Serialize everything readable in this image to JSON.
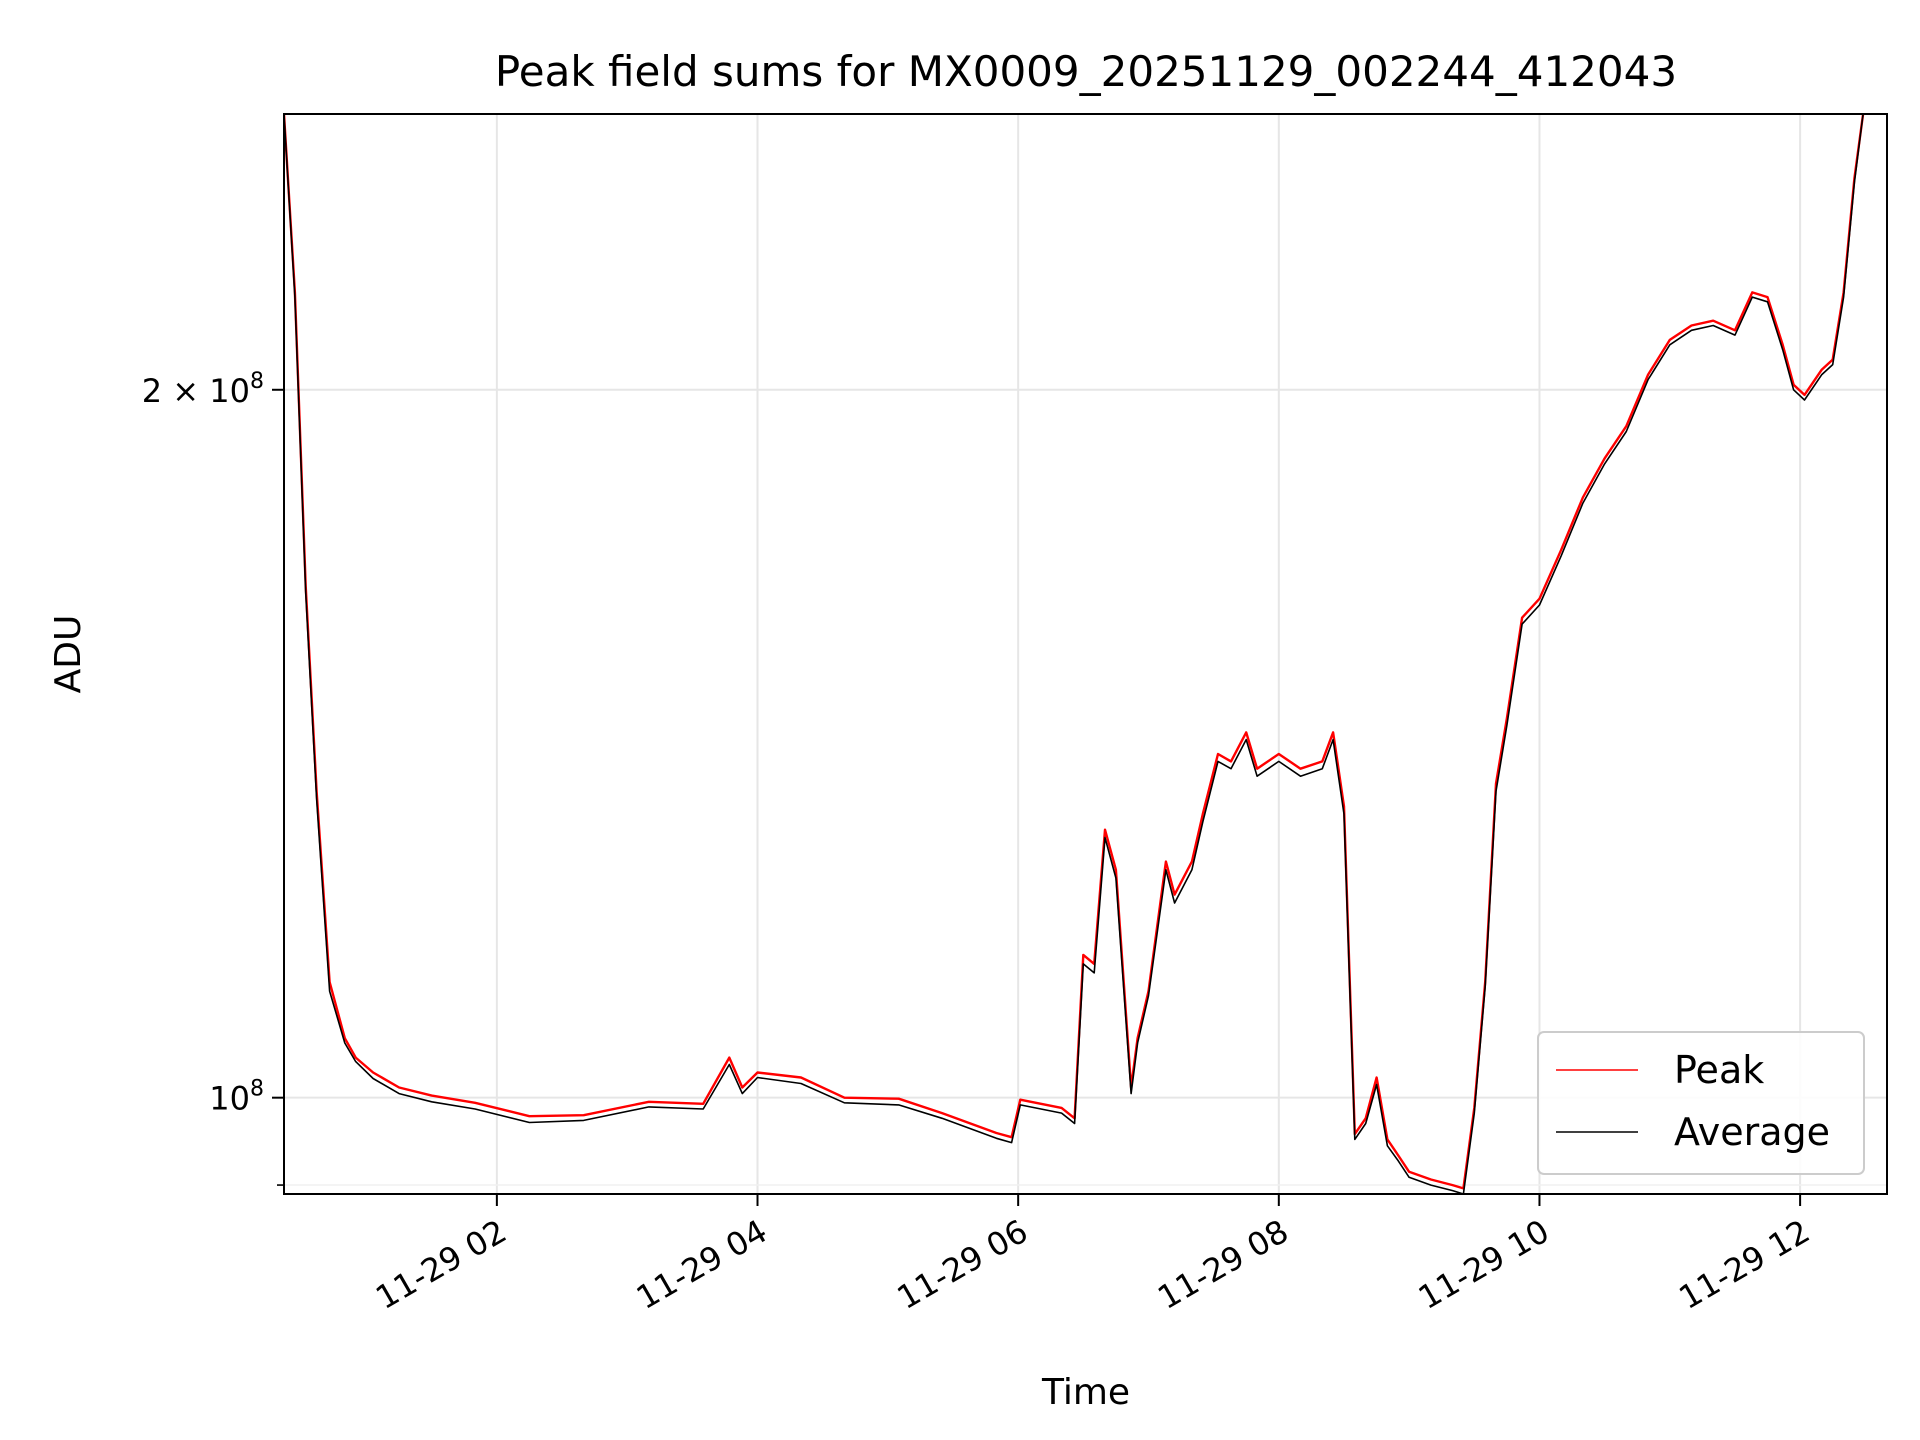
{
  "chart_data": {
    "type": "line",
    "title": "Peak field sums for MX0009_20251129_002244_412043",
    "xlabel": "Time",
    "ylabel": "ADU",
    "xlim": [
      "2025-11-29 00:22",
      "2025-11-29 12:40"
    ],
    "ylim": [
      91000000,
      262000000
    ],
    "yscale": "log",
    "grid": true,
    "legend": "lower-right",
    "x_ticks": [
      {
        "value": "2025-11-29 02:00",
        "label": "11-29 02"
      },
      {
        "value": "2025-11-29 04:00",
        "label": "11-29 04"
      },
      {
        "value": "2025-11-29 06:00",
        "label": "11-29 06"
      },
      {
        "value": "2025-11-29 08:00",
        "label": "11-29 08"
      },
      {
        "value": "2025-11-29 10:00",
        "label": "11-29 10"
      },
      {
        "value": "2025-11-29 12:00",
        "label": "11-29 12"
      }
    ],
    "y_ticks": [
      {
        "value": 100000000,
        "label_base": "10",
        "label_exp": "8",
        "label_prefix": ""
      },
      {
        "value": 200000000,
        "label_base": "10",
        "label_exp": "8",
        "label_prefix": "2 × "
      }
    ],
    "x": [
      "2025-11-29 00:22",
      "2025-11-29 00:27",
      "2025-11-29 00:32",
      "2025-11-29 00:37",
      "2025-11-29 00:43",
      "2025-11-29 00:50",
      "2025-11-29 00:55",
      "2025-11-29 01:03",
      "2025-11-29 01:15",
      "2025-11-29 01:30",
      "2025-11-29 01:50",
      "2025-11-29 02:15",
      "2025-11-29 02:40",
      "2025-11-29 03:10",
      "2025-11-29 03:35",
      "2025-11-29 03:47",
      "2025-11-29 03:53",
      "2025-11-29 04:00",
      "2025-11-29 04:20",
      "2025-11-29 04:40",
      "2025-11-29 05:05",
      "2025-11-29 05:25",
      "2025-11-29 05:50",
      "2025-11-29 05:57",
      "2025-11-29 06:01",
      "2025-11-29 06:20",
      "2025-11-29 06:26",
      "2025-11-29 06:30",
      "2025-11-29 06:35",
      "2025-11-29 06:40",
      "2025-11-29 06:45",
      "2025-11-29 06:52",
      "2025-11-29 06:55",
      "2025-11-29 07:00",
      "2025-11-29 07:08",
      "2025-11-29 07:12",
      "2025-11-29 07:20",
      "2025-11-29 07:25",
      "2025-11-29 07:32",
      "2025-11-29 07:38",
      "2025-11-29 07:45",
      "2025-11-29 07:50",
      "2025-11-29 08:00",
      "2025-11-29 08:10",
      "2025-11-29 08:20",
      "2025-11-29 08:25",
      "2025-11-29 08:30",
      "2025-11-29 08:35",
      "2025-11-29 08:40",
      "2025-11-29 08:45",
      "2025-11-29 08:50",
      "2025-11-29 08:55",
      "2025-11-29 09:00",
      "2025-11-29 09:10",
      "2025-11-29 09:20",
      "2025-11-29 09:25",
      "2025-11-29 09:30",
      "2025-11-29 09:35",
      "2025-11-29 09:40",
      "2025-11-29 09:45",
      "2025-11-29 09:52",
      "2025-11-29 10:00",
      "2025-11-29 10:10",
      "2025-11-29 10:20",
      "2025-11-29 10:30",
      "2025-11-29 10:40",
      "2025-11-29 10:50",
      "2025-11-29 11:00",
      "2025-11-29 11:10",
      "2025-11-29 11:20",
      "2025-11-29 11:30",
      "2025-11-29 11:38",
      "2025-11-29 11:45",
      "2025-11-29 11:52",
      "2025-11-29 11:57",
      "2025-11-29 12:02",
      "2025-11-29 12:10",
      "2025-11-29 12:15",
      "2025-11-29 12:20",
      "2025-11-29 12:25",
      "2025-11-29 12:29"
    ],
    "series": [
      {
        "name": "Peak",
        "color": "#ff0000",
        "values": [
          262000000,
          220000000,
          165000000,
          135000000,
          112000000,
          106000000,
          104000000,
          102500000,
          101000000,
          100200000,
          99500000,
          98200000,
          98300000,
          99600000,
          99400000,
          104000000,
          101000000,
          102500000,
          102000000,
          100000000,
          99900000,
          98500000,
          96600000,
          96200000,
          99800000,
          99000000,
          98000000,
          115000000,
          114000000,
          130000000,
          125000000,
          101000000,
          106000000,
          111000000,
          126000000,
          122000000,
          126000000,
          132000000,
          140000000,
          139000000,
          143000000,
          138000000,
          140000000,
          138000000,
          139000000,
          143000000,
          133000000,
          96500000,
          98000000,
          102000000,
          96000000,
          94500000,
          93000000,
          92300000,
          91800000,
          91500000,
          99000000,
          112000000,
          136000000,
          145000000,
          160000000,
          163000000,
          171000000,
          180000000,
          187000000,
          193000000,
          203000000,
          210000000,
          213000000,
          214000000,
          212000000,
          220000000,
          219000000,
          209000000,
          201000000,
          199000000,
          204000000,
          206000000,
          220000000,
          246000000,
          262000000
        ]
      },
      {
        "name": "Average",
        "color": "#000000",
        "values": [
          262000000,
          219000000,
          164000000,
          134000000,
          111000000,
          105500000,
          103600000,
          101900000,
          100400000,
          99600000,
          98900000,
          97600000,
          97800000,
          99100000,
          98900000,
          103300000,
          100400000,
          102000000,
          101400000,
          99500000,
          99300000,
          98000000,
          96100000,
          95700000,
          99300000,
          98500000,
          97500000,
          114000000,
          113000000,
          129000000,
          124000000,
          100400000,
          105500000,
          110500000,
          125000000,
          121000000,
          125000000,
          131000000,
          139000000,
          138000000,
          142000000,
          137000000,
          139000000,
          137000000,
          138000000,
          142000000,
          132000000,
          96000000,
          97500000,
          101300000,
          95400000,
          94000000,
          92500000,
          91800000,
          91300000,
          91000000,
          98500000,
          111500000,
          135000000,
          144000000,
          159000000,
          162000000,
          170000000,
          179000000,
          186000000,
          192000000,
          202000000,
          209000000,
          212000000,
          213000000,
          211000000,
          219000000,
          218000000,
          208000000,
          200000000,
          198000000,
          203000000,
          205000000,
          219000000,
          245000000,
          262000000
        ]
      }
    ]
  }
}
